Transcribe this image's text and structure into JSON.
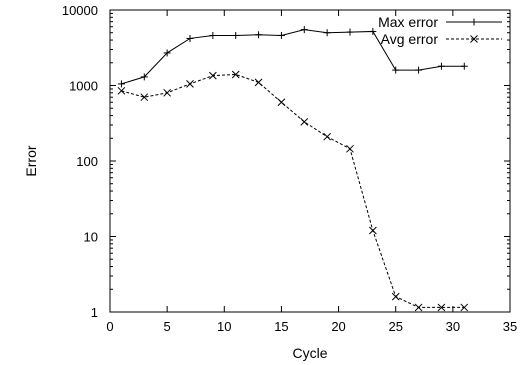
{
  "chart_data": {
    "type": "line",
    "xlabel": "Cycle",
    "ylabel": "Error",
    "xlim": [
      0,
      35
    ],
    "ylim": [
      1,
      10000
    ],
    "yscale": "log",
    "grid": false,
    "legend_position": "top-right",
    "x_ticks": [
      "0",
      "5",
      "10",
      "15",
      "20",
      "25",
      "30",
      "35"
    ],
    "y_ticks": [
      "1",
      "10",
      "100",
      "1000",
      "10000"
    ],
    "series": [
      {
        "name": "Max error",
        "style": "solid",
        "marker": "plus",
        "color": "#000000",
        "x": [
          1,
          3,
          5,
          7,
          9,
          11,
          13,
          15,
          17,
          19,
          21,
          23,
          25,
          27,
          29,
          31
        ],
        "y": [
          1050,
          1300,
          2700,
          4200,
          4600,
          4600,
          4700,
          4600,
          5500,
          5000,
          5100,
          5200,
          1600,
          1600,
          1800,
          1800
        ]
      },
      {
        "name": "Avg error",
        "style": "dashed",
        "marker": "cross",
        "color": "#000000",
        "x": [
          1,
          3,
          5,
          7,
          9,
          11,
          13,
          15,
          17,
          19,
          21,
          23,
          25,
          27,
          29,
          31
        ],
        "y": [
          850,
          700,
          800,
          1050,
          1350,
          1400,
          1100,
          600,
          330,
          210,
          145,
          12,
          1.6,
          1.15,
          1.15,
          1.15
        ]
      }
    ]
  }
}
